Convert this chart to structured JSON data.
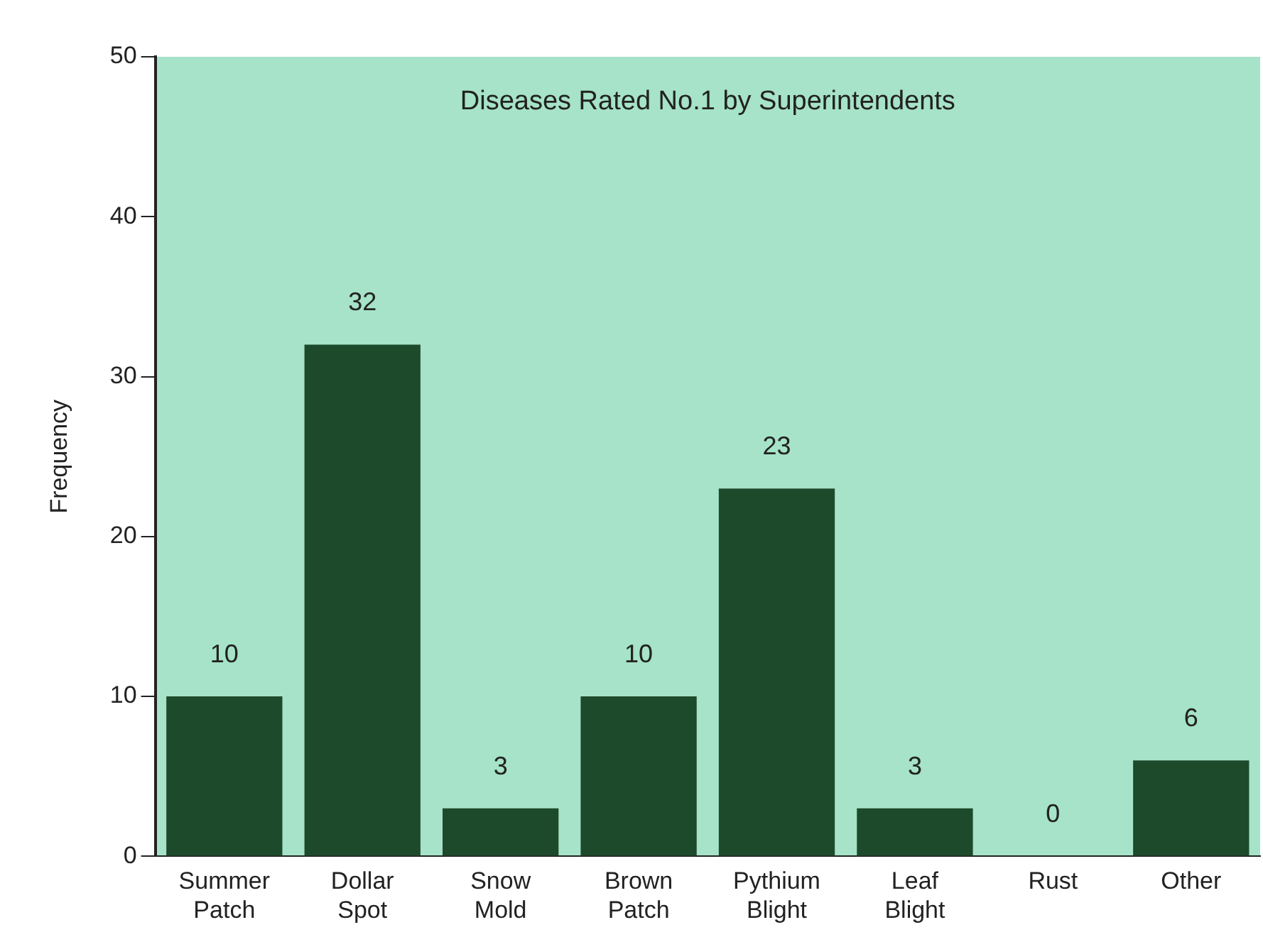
{
  "chart_data": {
    "type": "bar",
    "title": "Diseases Rated No.1 by Superintendents",
    "ylabel": "Frequency",
    "categories": [
      "Summer Patch",
      "Dollar Spot",
      "Snow Mold",
      "Brown Patch",
      "Pythium Blight",
      "Leaf Blight",
      "Rust",
      "Other"
    ],
    "values": [
      10,
      32,
      3,
      10,
      23,
      3,
      0,
      6
    ],
    "color": "#1e4a2c",
    "ylim": [
      0,
      50
    ],
    "yticks": [
      0,
      10,
      20,
      30,
      40,
      50
    ],
    "grid": false,
    "legend": false,
    "data_labels": true
  }
}
